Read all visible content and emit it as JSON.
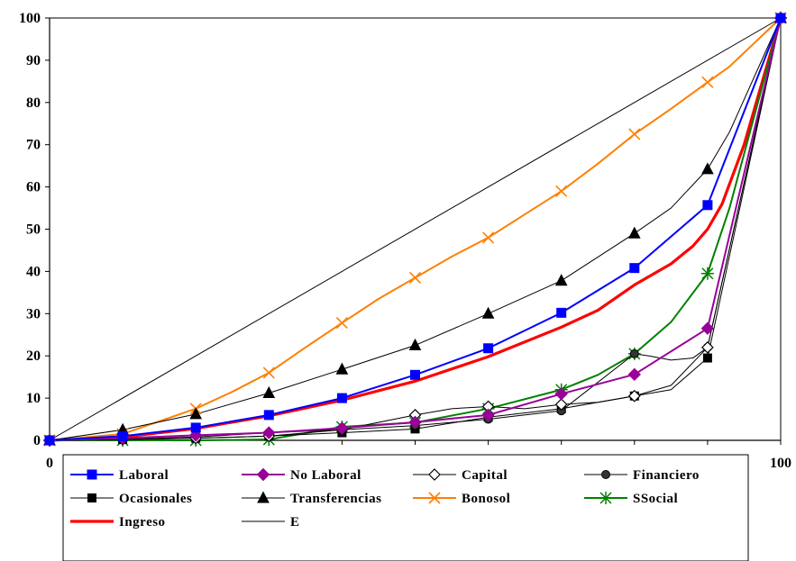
{
  "chart_data": {
    "type": "line",
    "title": "",
    "xlabel": "",
    "ylabel": "",
    "xlim": [
      0,
      100
    ],
    "ylim": [
      0,
      100
    ],
    "x_ticks": [
      0,
      10,
      20,
      30,
      40,
      50,
      60,
      70,
      80,
      90,
      100
    ],
    "y_ticks": [
      0,
      10,
      20,
      30,
      40,
      50,
      60,
      70,
      80,
      90,
      100
    ],
    "grid": false,
    "legend_placement": "bottom",
    "series": [
      {
        "name": "Laboral",
        "color": "#0000ff",
        "marker": "square",
        "weight": "normal",
        "x": [
          0,
          10,
          20,
          30,
          40,
          50,
          60,
          70,
          80,
          90,
          100
        ],
        "y": [
          0,
          1,
          3,
          6,
          10,
          15.5,
          21.8,
          30.2,
          40.8,
          55.7,
          100
        ],
        "marker_x": [
          0,
          10,
          20,
          30,
          40,
          50,
          60,
          70,
          80,
          90,
          100
        ]
      },
      {
        "name": "No Laboral",
        "color": "#990099",
        "marker": "diamond",
        "weight": "normal",
        "x": [
          0,
          10,
          20,
          30,
          40,
          50,
          60,
          70,
          80,
          90,
          100
        ],
        "y": [
          0,
          0.5,
          1.2,
          1.8,
          2.9,
          4.3,
          6,
          11,
          15.6,
          26.5,
          100
        ],
        "marker_x": [
          0,
          10,
          20,
          30,
          40,
          50,
          60,
          70,
          80,
          90,
          100
        ]
      },
      {
        "name": "Capital",
        "color": "#000000",
        "marker": "diamond-open",
        "weight": "thin",
        "x": [
          0,
          10,
          20,
          30,
          40,
          50,
          55,
          60,
          65,
          70,
          75,
          80,
          85,
          90,
          100
        ],
        "y": [
          0,
          0.2,
          0.5,
          1,
          2.5,
          6,
          7.5,
          8,
          7.5,
          8.5,
          9,
          10.5,
          13,
          22,
          100
        ],
        "marker_x": [
          0,
          10,
          20,
          30,
          40,
          50,
          60,
          70,
          80,
          90,
          100
        ]
      },
      {
        "name": "Financiero",
        "color": "#000000",
        "marker": "circle",
        "weight": "thin",
        "x": [
          0,
          10,
          20,
          30,
          40,
          50,
          60,
          70,
          80,
          82,
          85,
          88,
          90,
          100
        ],
        "y": [
          0,
          0.2,
          0.8,
          1.8,
          2.5,
          3.5,
          5,
          7,
          20.5,
          20,
          19,
          19.5,
          22,
          100
        ],
        "marker_x": [
          0,
          10,
          20,
          30,
          40,
          50,
          60,
          70,
          80,
          90,
          100
        ]
      },
      {
        "name": "Ocasionales",
        "color": "#000000",
        "marker": "square-filled",
        "weight": "thin",
        "x": [
          0,
          10,
          20,
          30,
          40,
          50,
          60,
          70,
          80,
          85,
          90,
          100
        ],
        "y": [
          0,
          0.2,
          0.5,
          1,
          1.8,
          2.7,
          5.5,
          7.5,
          10.5,
          12,
          19.5,
          100
        ],
        "marker_x": [
          0,
          10,
          20,
          30,
          40,
          50,
          60,
          70,
          80,
          90,
          100
        ]
      },
      {
        "name": "Transferencias",
        "color": "#000000",
        "marker": "triangle",
        "weight": "thin",
        "x": [
          0,
          10,
          20,
          30,
          40,
          50,
          60,
          70,
          80,
          85,
          90,
          93,
          100
        ],
        "y": [
          0,
          2.5,
          6.2,
          11.2,
          16.8,
          22.5,
          30,
          37.8,
          49,
          55,
          64.2,
          73,
          100
        ],
        "marker_x": [
          0,
          10,
          20,
          30,
          40,
          50,
          60,
          70,
          80,
          90,
          100
        ]
      },
      {
        "name": "Bonosol",
        "color": "#ff7f00",
        "marker": "x",
        "weight": "normal",
        "x": [
          0,
          10,
          20,
          25,
          30,
          35,
          40,
          45,
          50,
          55,
          60,
          65,
          70,
          75,
          80,
          85,
          90,
          93,
          100
        ],
        "y": [
          0,
          1.5,
          7.5,
          11.5,
          16,
          22,
          27.8,
          33.5,
          38.5,
          43.5,
          48,
          53.5,
          59,
          65.5,
          72.5,
          78.5,
          84.8,
          88.5,
          100
        ],
        "marker_x": [
          0,
          10,
          20,
          30,
          40,
          50,
          60,
          70,
          80,
          90,
          100
        ]
      },
      {
        "name": "SSocial",
        "color": "#008000",
        "marker": "star",
        "weight": "normal",
        "x": [
          0,
          10,
          20,
          30,
          40,
          50,
          60,
          70,
          75,
          80,
          85,
          90,
          93,
          100
        ],
        "y": [
          0,
          0,
          0,
          0.2,
          3.2,
          4.2,
          7.5,
          12,
          15.5,
          20.5,
          28,
          39.5,
          55,
          100
        ],
        "marker_x": [
          0,
          10,
          20,
          30,
          40,
          50,
          60,
          70,
          80,
          90,
          100
        ]
      },
      {
        "name": "Ingreso",
        "color": "#ff0000",
        "marker": "none",
        "weight": "bold",
        "x": [
          0,
          10,
          20,
          30,
          40,
          50,
          60,
          70,
          75,
          80,
          85,
          88,
          90,
          92,
          95,
          100
        ],
        "y": [
          0,
          0.8,
          2.8,
          5.8,
          9.5,
          14,
          19.8,
          26.8,
          30.8,
          36.8,
          41.8,
          46,
          50,
          56,
          70,
          100
        ],
        "marker_x": []
      },
      {
        "name": "E",
        "color": "#000000",
        "marker": "none",
        "weight": "thin",
        "x": [
          0,
          100
        ],
        "y": [
          0,
          100
        ],
        "marker_x": []
      }
    ]
  }
}
